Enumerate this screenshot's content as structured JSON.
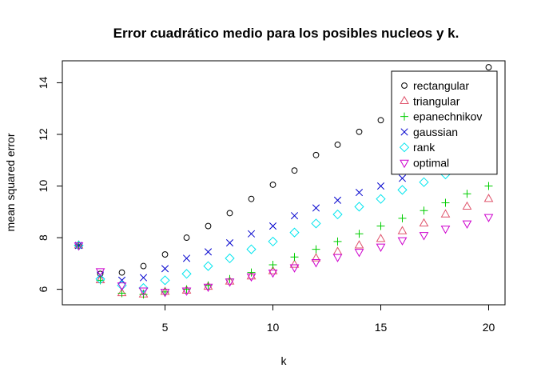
{
  "chart_data": {
    "type": "scatter",
    "title": "Error cuadrático medio para los posibles nucleos y k.",
    "xlabel": "k",
    "ylabel": "mean squared error",
    "xlim": [
      0.24,
      20.76
    ],
    "ylim": [
      5.4,
      14.85
    ],
    "x_ticks": [
      5,
      10,
      15,
      20
    ],
    "y_ticks": [
      6,
      8,
      10,
      12,
      14
    ],
    "x": [
      1,
      2,
      3,
      4,
      5,
      6,
      7,
      8,
      9,
      10,
      11,
      12,
      13,
      14,
      15,
      16,
      17,
      18,
      19,
      20
    ],
    "legend_position": "top-right",
    "series": [
      {
        "name": "rectangular",
        "color": "#000000",
        "symbol": "circle",
        "values": [
          7.7,
          6.6,
          6.65,
          6.9,
          7.35,
          8.0,
          8.45,
          8.95,
          9.5,
          10.05,
          10.6,
          11.2,
          11.6,
          12.1,
          12.55,
          13.05,
          13.45,
          13.9,
          14.25,
          14.6
        ]
      },
      {
        "name": "triangular",
        "color": "#DF536B",
        "symbol": "triangle-up",
        "values": [
          7.7,
          6.35,
          5.85,
          5.8,
          5.9,
          5.95,
          6.1,
          6.3,
          6.5,
          6.7,
          6.95,
          7.2,
          7.45,
          7.7,
          7.95,
          8.25,
          8.55,
          8.9,
          9.2,
          9.5
        ]
      },
      {
        "name": "epanechnikov",
        "color": "#00CD00",
        "symbol": "plus",
        "values": [
          7.7,
          6.35,
          5.85,
          5.8,
          5.9,
          6.0,
          6.15,
          6.4,
          6.65,
          6.95,
          7.25,
          7.55,
          7.85,
          8.15,
          8.45,
          8.75,
          9.05,
          9.35,
          9.7,
          10.0
        ]
      },
      {
        "name": "gaussian",
        "color": "#0000CD",
        "symbol": "cross",
        "values": [
          7.7,
          6.55,
          6.35,
          6.45,
          6.8,
          7.2,
          7.45,
          7.8,
          8.15,
          8.45,
          8.85,
          9.15,
          9.45,
          9.75,
          10.0,
          10.3,
          10.6,
          10.85,
          11.1,
          11.35
        ]
      },
      {
        "name": "rank",
        "color": "#00E5EE",
        "symbol": "diamond",
        "values": [
          7.7,
          6.4,
          6.15,
          6.05,
          6.35,
          6.6,
          6.9,
          7.2,
          7.55,
          7.85,
          8.2,
          8.55,
          8.9,
          9.2,
          9.5,
          9.85,
          10.15,
          10.45,
          10.75,
          11.05
        ]
      },
      {
        "name": "optimal",
        "color": "#CD00CD",
        "symbol": "triangle-down",
        "values": [
          7.7,
          6.7,
          6.15,
          5.95,
          5.9,
          5.95,
          6.1,
          6.3,
          6.5,
          6.65,
          6.85,
          7.05,
          7.25,
          7.45,
          7.65,
          7.9,
          8.1,
          8.35,
          8.55,
          8.8
        ]
      }
    ]
  }
}
